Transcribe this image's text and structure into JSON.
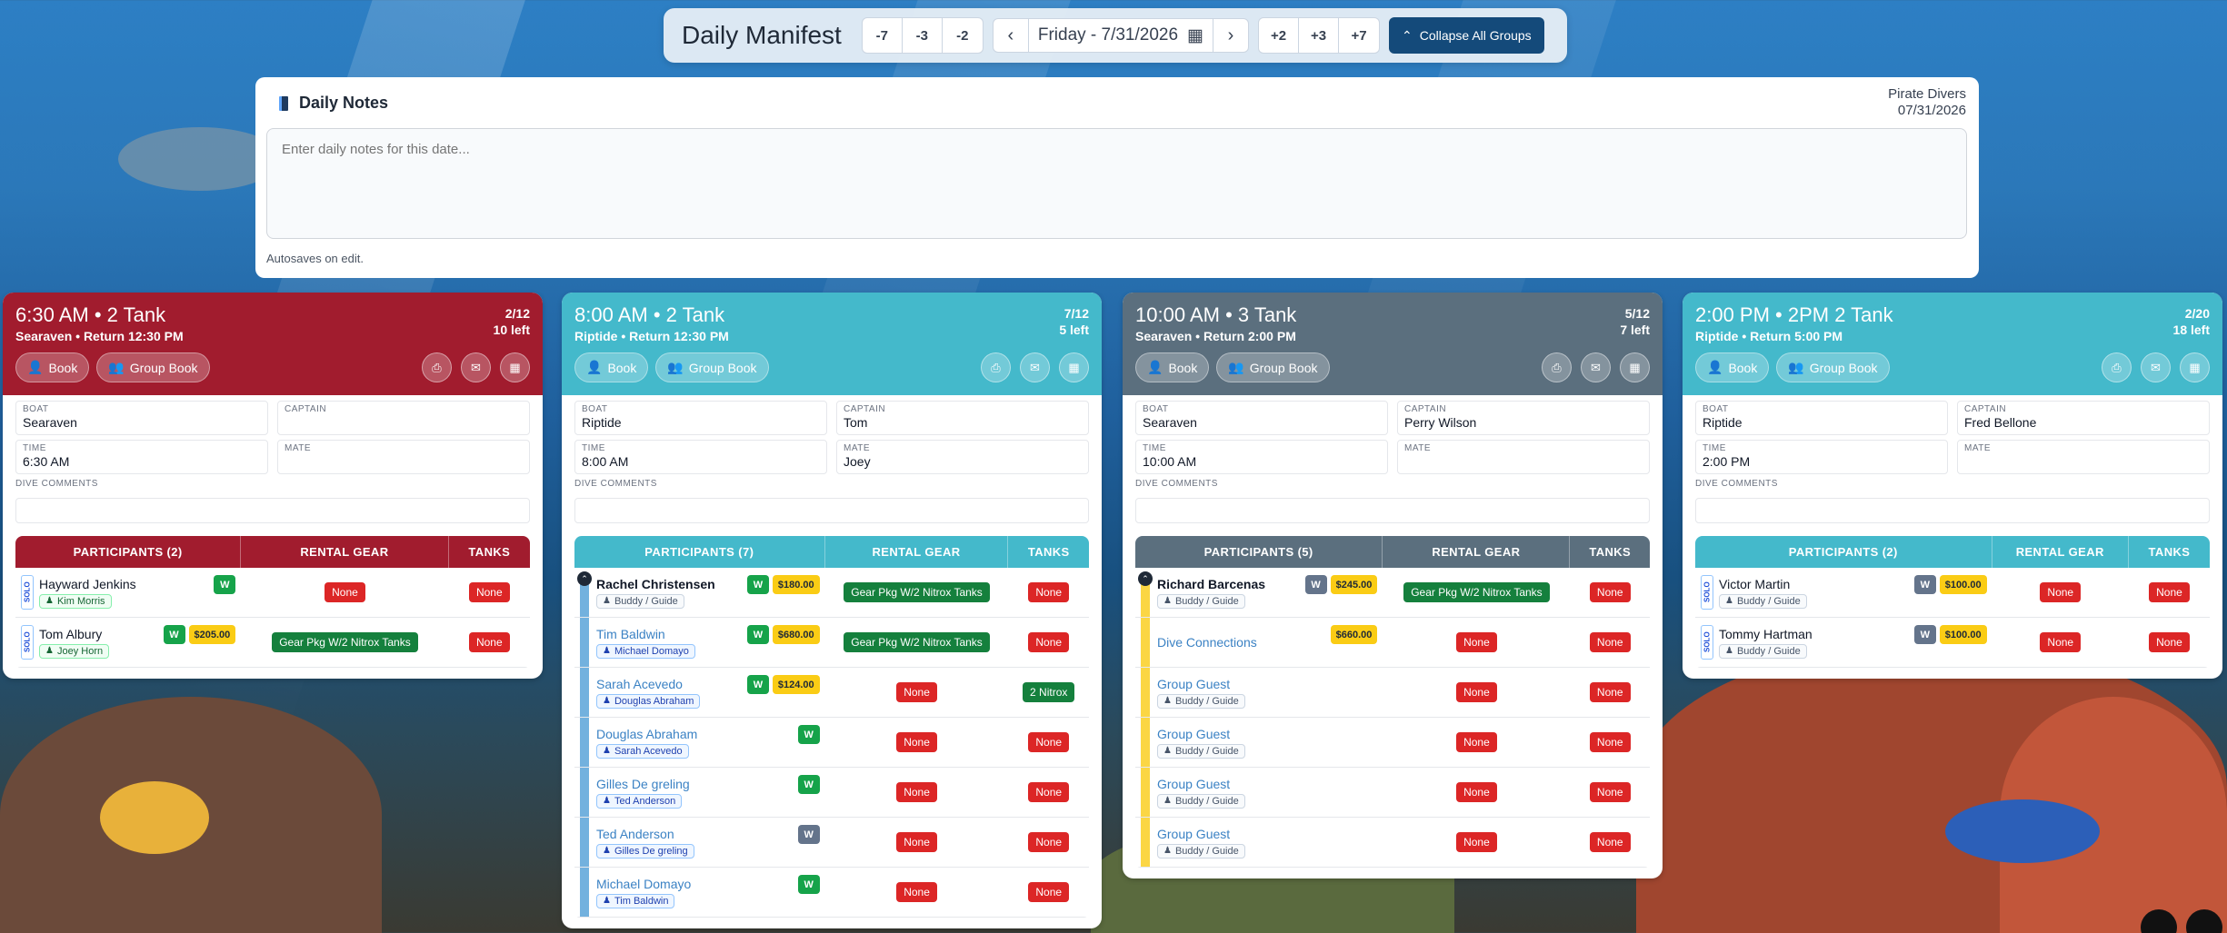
{
  "header": {
    "title": "Daily Manifest",
    "back_buttons": [
      "-7",
      "-3",
      "-2"
    ],
    "fwd_buttons": [
      "+2",
      "+3",
      "+7"
    ],
    "date": "Friday - 7/31/2026",
    "collapse": "Collapse All Groups"
  },
  "notes": {
    "title": "Daily Notes",
    "company": "Pirate Divers",
    "date": "07/31/2026",
    "placeholder": "Enter daily notes for this date...",
    "autosave": "Autosaves on edit."
  },
  "colors": {
    "c1": "#a11c2e",
    "c2": "#44b9cb",
    "c3": "#5b6f7e",
    "c4": "#44b9cb"
  },
  "labels": {
    "book": "Book",
    "group_book": "Group Book",
    "boat": "BOAT",
    "captain": "CAPTAIN",
    "time": "TIME",
    "mate": "MATE",
    "dive_comments": "DIVE COMMENTS",
    "rental": "RENTAL GEAR",
    "tanks": "TANKS",
    "solo": "SOLO",
    "w": "W",
    "none": "None"
  },
  "cards": [
    {
      "title": "6:30 AM • 2 Tank",
      "sub": "Searaven • Return 12:30 PM",
      "cap": "2/12",
      "left": "10 left",
      "boat": "Searaven",
      "captain": "",
      "time": "6:30 AM",
      "mate": "",
      "participants": "PARTICIPANTS (2)",
      "rows": [
        {
          "name": "Hayward Jenkins",
          "buddy": "Kim Morris",
          "gear": "None",
          "tanks": "None"
        },
        {
          "name": "Tom Albury",
          "buddy": "Joey Horn",
          "price": "$205.00",
          "gear": "Gear Pkg W/2 Nitrox Tanks",
          "tanks": "None"
        }
      ]
    },
    {
      "title": "8:00 AM • 2 Tank",
      "sub": "Riptide • Return 12:30 PM",
      "cap": "7/12",
      "left": "5 left",
      "boat": "Riptide",
      "captain": "Tom",
      "time": "8:00 AM",
      "mate": "Joey",
      "participants": "PARTICIPANTS (7)",
      "rows": [
        {
          "name": "Rachel Christensen",
          "buddy": "Buddy / Guide",
          "price": "$180.00",
          "gear": "Gear Pkg W/2 Nitrox Tanks",
          "tanks": "None"
        },
        {
          "name": "Tim Baldwin",
          "buddy": "Michael Domayo",
          "price": "$680.00",
          "gear": "Gear Pkg W/2 Nitrox Tanks",
          "tanks": "None"
        },
        {
          "name": "Sarah Acevedo",
          "buddy": "Douglas Abraham",
          "price": "$124.00",
          "gear": "None",
          "tanks": "2 Nitrox"
        },
        {
          "name": "Douglas Abraham",
          "buddy": "Sarah Acevedo",
          "gear": "None",
          "tanks": "None"
        },
        {
          "name": "Gilles De greling",
          "buddy": "Ted Anderson",
          "gear": "None",
          "tanks": "None"
        },
        {
          "name": "Ted Anderson",
          "buddy": "Gilles De greling",
          "gear": "None",
          "tanks": "None"
        },
        {
          "name": "Michael Domayo",
          "buddy": "Tim Baldwin",
          "gear": "None",
          "tanks": "None"
        }
      ]
    },
    {
      "title": "10:00 AM • 3 Tank",
      "sub": "Searaven • Return 2:00 PM",
      "cap": "5/12",
      "left": "7 left",
      "boat": "Searaven",
      "captain": "Perry Wilson",
      "time": "10:00 AM",
      "mate": "",
      "participants": "PARTICIPANTS (5)",
      "rows": [
        {
          "name": "Richard Barcenas",
          "buddy": "Buddy / Guide",
          "price": "$245.00",
          "gear": "Gear Pkg W/2 Nitrox Tanks",
          "tanks": "None"
        },
        {
          "name": "Dive Connections",
          "price": "$660.00",
          "gear": "None",
          "tanks": "None"
        },
        {
          "name": "Group Guest",
          "buddy": "Buddy / Guide",
          "gear": "None",
          "tanks": "None"
        },
        {
          "name": "Group Guest",
          "buddy": "Buddy / Guide",
          "gear": "None",
          "tanks": "None"
        },
        {
          "name": "Group Guest",
          "buddy": "Buddy / Guide",
          "gear": "None",
          "tanks": "None"
        },
        {
          "name": "Group Guest",
          "buddy": "Buddy / Guide",
          "gear": "None",
          "tanks": "None"
        }
      ]
    },
    {
      "title": "2:00 PM • 2PM 2 Tank",
      "sub": "Riptide • Return 5:00 PM",
      "cap": "2/20",
      "left": "18 left",
      "boat": "Riptide",
      "captain": "Fred Bellone",
      "time": "2:00 PM",
      "mate": "",
      "participants": "PARTICIPANTS (2)",
      "rows": [
        {
          "name": "Victor Martin",
          "buddy": "Buddy / Guide",
          "price": "$100.00",
          "gear": "None",
          "tanks": "None"
        },
        {
          "name": "Tommy Hartman",
          "buddy": "Buddy / Guide",
          "price": "$100.00",
          "gear": "None",
          "tanks": "None"
        }
      ]
    }
  ]
}
